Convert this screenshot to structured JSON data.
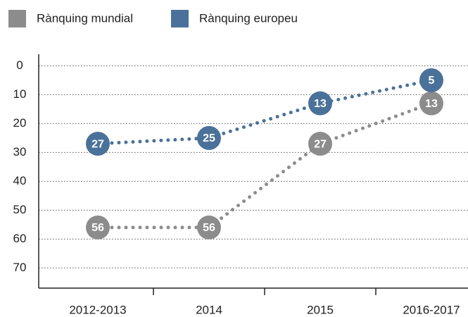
{
  "chart_data": {
    "type": "line",
    "categories": [
      "2012-2013",
      "2014",
      "2015",
      "2016-2017"
    ],
    "series": [
      {
        "name": "Rànquing mundial",
        "color": "#8c8c8c",
        "values": [
          56,
          56,
          27,
          13
        ]
      },
      {
        "name": "Rànquing europeu",
        "color": "#4a7199",
        "values": [
          27,
          25,
          13,
          5
        ]
      }
    ],
    "ylim": [
      -4,
      77
    ],
    "yticks": [
      0,
      10,
      20,
      30,
      40,
      50,
      60,
      70
    ],
    "y_inverted": true,
    "grid": true,
    "legend": "top-left"
  }
}
